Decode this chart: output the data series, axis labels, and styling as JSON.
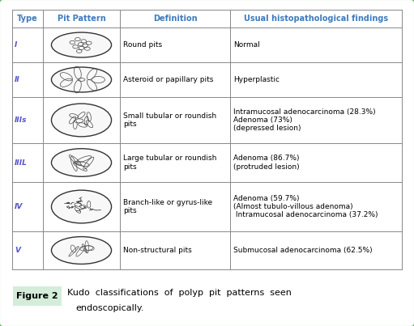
{
  "title": "Figure 2",
  "caption_line1": "Kudo  classifications  of  polyp  pit  patterns  seen",
  "caption_line2": "endoscopically.",
  "header": [
    "Type",
    "Pit Pattern",
    "Definition",
    "Usual histopathological findings"
  ],
  "header_color": "#3d7abf",
  "type_color": "#5555cc",
  "rows": [
    {
      "type": "I",
      "definition": "Round pits",
      "findings": "Normal"
    },
    {
      "type": "II",
      "definition": "Asteroid or papillary pits",
      "findings": "Hyperplastic"
    },
    {
      "type": "IIIs",
      "definition": "Small tubular or roundish\npits",
      "findings": "Intramucosal adenocarcinoma (28.3%)\nAdenoma (73%)\n(depressed lesion)"
    },
    {
      "type": "IIIL",
      "definition": "Large tubular or roundish\npits",
      "findings": "Adenoma (86.7%)\n(protruded lesion)"
    },
    {
      "type": "IV",
      "definition": "Branch-like or gyrus-like\npits",
      "findings": "Adenoma (59.7%)\n(Almost tubulo-villous adenoma)\n Intramucosal adenocarcinoma (37.2%)"
    },
    {
      "type": "V",
      "definition": "Non-structural pits",
      "findings": "Submucosal adenocarcinoma (62.5%)"
    }
  ],
  "border_color": "#6aab6a",
  "text_color": "#000000",
  "figure_label_bg": "#d4edda",
  "caption_color": "#000000",
  "fig_width": 5.11,
  "fig_height": 4.03,
  "dpi": 100
}
